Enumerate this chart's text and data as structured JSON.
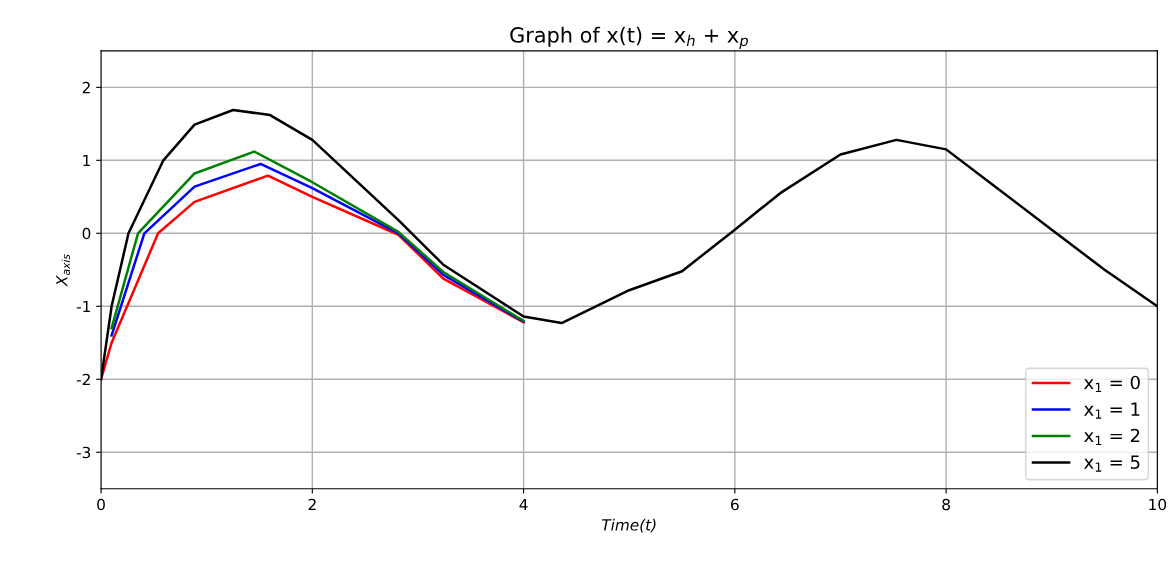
{
  "chart_data": {
    "type": "line",
    "title": "Graph of x(t) = x$_{h}$ + x$_{p}$",
    "xlabel": "Time(t)",
    "ylabel": "X$_{axis}$",
    "xlim": [
      0,
      10
    ],
    "xticks": [
      0,
      2,
      4,
      6,
      8,
      10
    ],
    "ylim": [
      -3.5,
      2.5
    ],
    "yticks": [
      -3,
      -2,
      -1,
      0,
      1,
      2
    ],
    "grid": true,
    "legend": "bottom right",
    "line_style": "solid",
    "marker": "none",
    "series": [
      {
        "name": "x$_{1}$ = 0",
        "color": "#ff0000",
        "x": [
          0,
          0.1,
          0.54,
          0.885,
          1.58,
          2,
          2.815,
          3.24,
          4
        ],
        "values": [
          -2,
          -1.5,
          0,
          0.43,
          0.79,
          0.5,
          -0.02,
          -0.62,
          -1.22
        ]
      },
      {
        "name": "x$_{1}$ = 1",
        "color": "#0000ff",
        "x": [
          0.1,
          0.41,
          0.885,
          1.51,
          2,
          2.815,
          3.24,
          4
        ],
        "values": [
          -1.4,
          0,
          0.64,
          0.95,
          0.62,
          0.0,
          -0.57,
          -1.21
        ]
      },
      {
        "name": "x$_{1}$ = 2",
        "color": "#008000",
        "x": [
          0.1,
          0.35,
          0.885,
          1.45,
          2,
          2.815,
          3.24,
          4
        ],
        "values": [
          -1.3,
          0,
          0.82,
          1.12,
          0.7,
          0.02,
          -0.53,
          -1.2
        ]
      },
      {
        "name": "x$_{1}$ = 5",
        "color": "#000000",
        "x": [
          0,
          0.1,
          0.26,
          0.59,
          0.885,
          1.25,
          1.6,
          2,
          2.815,
          3.24,
          4,
          4.36,
          5,
          5.5,
          6,
          6.43,
          7,
          7.53,
          8,
          8.5,
          9,
          9.5,
          10
        ],
        "values": [
          -2,
          -1.0,
          0,
          1,
          1.49,
          1.69,
          1.62,
          1.28,
          0.18,
          -0.43,
          -1.14,
          -1.23,
          -0.78,
          -0.52,
          0.05,
          0.55,
          1.08,
          1.28,
          1.15,
          0.6,
          0.05,
          -0.5,
          -1.0
        ]
      }
    ]
  }
}
